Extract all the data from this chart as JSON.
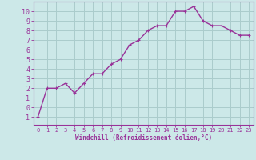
{
  "x": [
    0,
    1,
    2,
    3,
    4,
    5,
    6,
    7,
    8,
    9,
    10,
    11,
    12,
    13,
    14,
    15,
    16,
    17,
    18,
    19,
    20,
    21,
    22,
    23
  ],
  "y": [
    -1,
    2,
    2,
    2.5,
    1.5,
    2.5,
    3.5,
    3.5,
    4.5,
    5,
    6.5,
    7,
    8,
    8.5,
    8.5,
    10,
    10,
    10.5,
    9,
    8.5,
    8.5,
    8,
    7.5,
    7.5
  ],
  "line_color": "#993399",
  "marker": "+",
  "bg_color": "#cce8e8",
  "grid_color": "#aacccc",
  "xlabel": "Windchill (Refroidissement éolien,°C)",
  "ylabel_ticks": [
    -1,
    0,
    1,
    2,
    3,
    4,
    5,
    6,
    7,
    8,
    9,
    10
  ],
  "ylim": [
    -1.8,
    11.0
  ],
  "xlim": [
    -0.5,
    23.5
  ],
  "xlabel_color": "#993399",
  "tick_color": "#993399",
  "spine_color": "#993399",
  "xtick_fontsize": 5.0,
  "ytick_fontsize": 6.0,
  "xlabel_fontsize": 5.5,
  "linewidth": 1.0,
  "markersize": 3.5
}
